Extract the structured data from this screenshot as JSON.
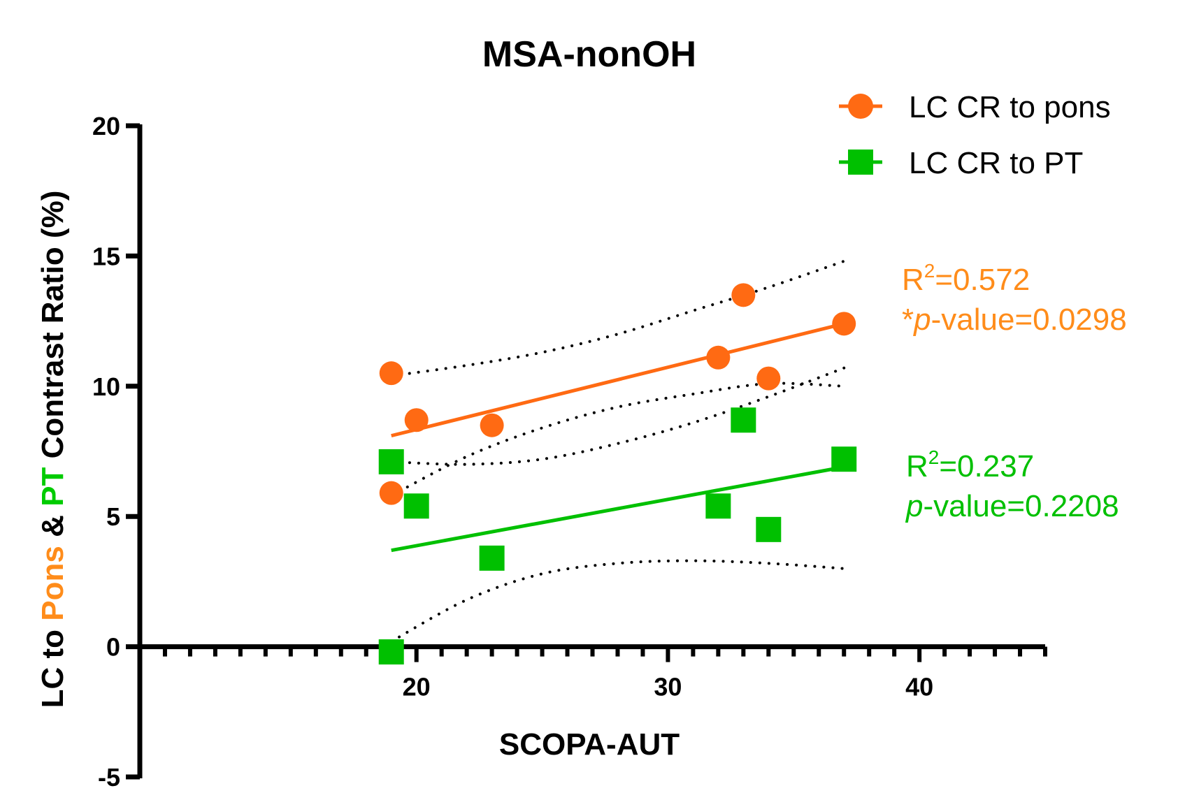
{
  "chart_data": {
    "type": "scatter",
    "title": "MSA-nonOH",
    "xlabel": "SCOPA-AUT",
    "ylabel_parts": [
      {
        "text": "LC to ",
        "color": "#000000"
      },
      {
        "text": "Pons",
        "color": "#ff8c1a"
      },
      {
        "text": " & ",
        "color": "#000000"
      },
      {
        "text": "PT",
        "color": "#00cc00"
      },
      {
        "text": " Contrast Ratio (%)",
        "color": "#000000"
      }
    ],
    "xlim": [
      9,
      45
    ],
    "ylim": [
      -5,
      20
    ],
    "x_ticks": [
      20,
      30,
      40
    ],
    "y_ticks": [
      -5,
      0,
      5,
      10,
      15,
      20
    ],
    "x_axis_crosses_y": 0,
    "grid": false,
    "legend_position": "top-right",
    "series": [
      {
        "name": "LC CR to pons",
        "color": "#ff6a13",
        "marker": "circle",
        "points": [
          [
            19,
            10.5
          ],
          [
            19,
            5.9
          ],
          [
            20,
            8.7
          ],
          [
            23,
            8.5
          ],
          [
            32,
            11.1
          ],
          [
            33,
            13.5
          ],
          [
            34,
            10.3
          ],
          [
            37,
            12.4
          ]
        ],
        "fit": {
          "x": [
            19,
            37
          ],
          "y": [
            8.1,
            12.4
          ]
        },
        "ci_upper": [
          [
            19,
            10.4
          ],
          [
            22,
            10.8
          ],
          [
            25,
            11.3
          ],
          [
            28,
            12.0
          ],
          [
            31,
            12.9
          ],
          [
            34,
            13.8
          ],
          [
            37,
            14.8
          ]
        ],
        "ci_lower": [
          [
            19,
            5.8
          ],
          [
            22,
            7.3
          ],
          [
            25,
            8.4
          ],
          [
            28,
            9.2
          ],
          [
            31,
            9.7
          ],
          [
            34,
            10.1
          ],
          [
            37,
            10.0
          ]
        ],
        "stats": {
          "r2_prefix": "R",
          "r2_sup": "2",
          "r2_value": "=0.572",
          "p_star": "*",
          "p_italic": "p",
          "p_rest": "-value=0.0298"
        }
      },
      {
        "name": "LC CR to PT",
        "color": "#00c000",
        "marker": "square",
        "points": [
          [
            19,
            7.1
          ],
          [
            19,
            -0.2
          ],
          [
            20,
            5.4
          ],
          [
            23,
            3.4
          ],
          [
            32,
            5.4
          ],
          [
            33,
            8.7
          ],
          [
            34,
            4.5
          ],
          [
            37,
            7.2
          ]
        ],
        "fit": {
          "x": [
            19,
            37
          ],
          "y": [
            3.7,
            6.9
          ]
        },
        "ci_upper": [
          [
            19,
            7.1
          ],
          [
            22,
            7.0
          ],
          [
            25,
            7.2
          ],
          [
            28,
            7.8
          ],
          [
            31,
            8.6
          ],
          [
            34,
            9.6
          ],
          [
            37,
            10.7
          ]
        ],
        "ci_lower": [
          [
            19,
            0.2
          ],
          [
            22,
            1.8
          ],
          [
            25,
            2.8
          ],
          [
            28,
            3.2
          ],
          [
            31,
            3.3
          ],
          [
            34,
            3.2
          ],
          [
            37,
            3.0
          ]
        ],
        "stats": {
          "r2_prefix": "R",
          "r2_sup": "2",
          "r2_value": "=0.237",
          "p_star": "",
          "p_italic": "p",
          "p_rest": "-value=0.2208"
        }
      }
    ]
  },
  "colors": {
    "pons_text": "#ff8c1a",
    "pt_text": "#00c000",
    "axis": "#000000",
    "ci": "#000000"
  }
}
